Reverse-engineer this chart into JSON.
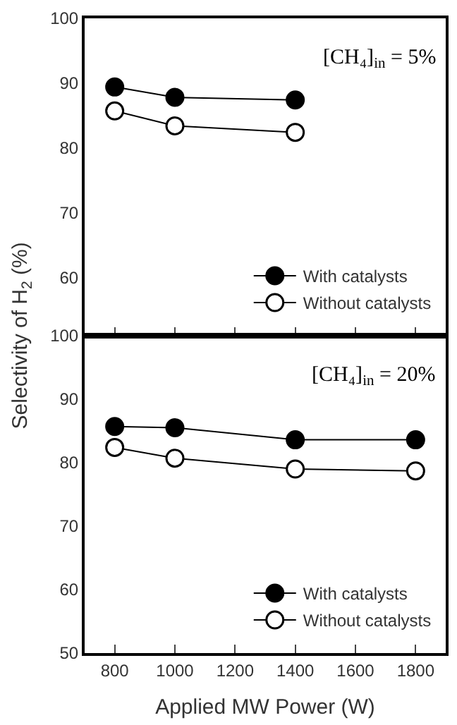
{
  "chart_data": [
    {
      "type": "line",
      "x": [
        800,
        1000,
        1400
      ],
      "xlim": [
        700,
        1900
      ],
      "xticks": [
        {
          "value": 800,
          "label": null
        },
        {
          "value": 1000,
          "label": null
        },
        {
          "value": 1200,
          "label": null
        },
        {
          "value": 1400,
          "label": null
        },
        {
          "value": 1600,
          "label": null
        },
        {
          "value": 1800,
          "label": null
        }
      ],
      "ylim": [
        51,
        100
      ],
      "yticks": [
        60,
        70,
        80,
        90,
        100
      ],
      "tick_labels": "y",
      "ylabel": "Selectivity of H$_{2}$ (%)",
      "marker": "circle",
      "legend": "bottom right",
      "grid": false,
      "annotations": [
        "[CH₄]$_{in}$ = 5%"
      ],
      "series": [
        {
          "name": "With catalysts",
          "color": "#000000",
          "values": [
            89.4,
            87.8,
            87.4
          ]
        },
        {
          "name": "Without catalysts",
          "color": "#ffffff",
          "values": [
            85.7,
            83.4,
            82.4
          ]
        }
      ]
    },
    {
      "type": "line",
      "x": [
        800,
        1000,
        1400,
        1800
      ],
      "xlim": [
        700,
        1900
      ],
      "xticks": [
        800,
        1000,
        1200,
        1400,
        1600,
        1800
      ],
      "ylim": [
        50,
        100
      ],
      "yticks": [
        50,
        60,
        70,
        80,
        90,
        100
      ],
      "xlabel": "Applied MW Power (W)",
      "marker": "circle",
      "legend": "bottom right",
      "grid": false,
      "annotations": [
        "[CH₄]$_{in}$ = 20%"
      ],
      "series": [
        {
          "name": "With catalysts",
          "color": "#000000",
          "values": [
            85.7,
            85.5,
            83.6,
            83.6
          ]
        },
        {
          "name": "Without catalysts",
          "color": "#ffffff",
          "values": [
            82.4,
            80.7,
            79.0,
            78.7
          ]
        }
      ]
    }
  ]
}
